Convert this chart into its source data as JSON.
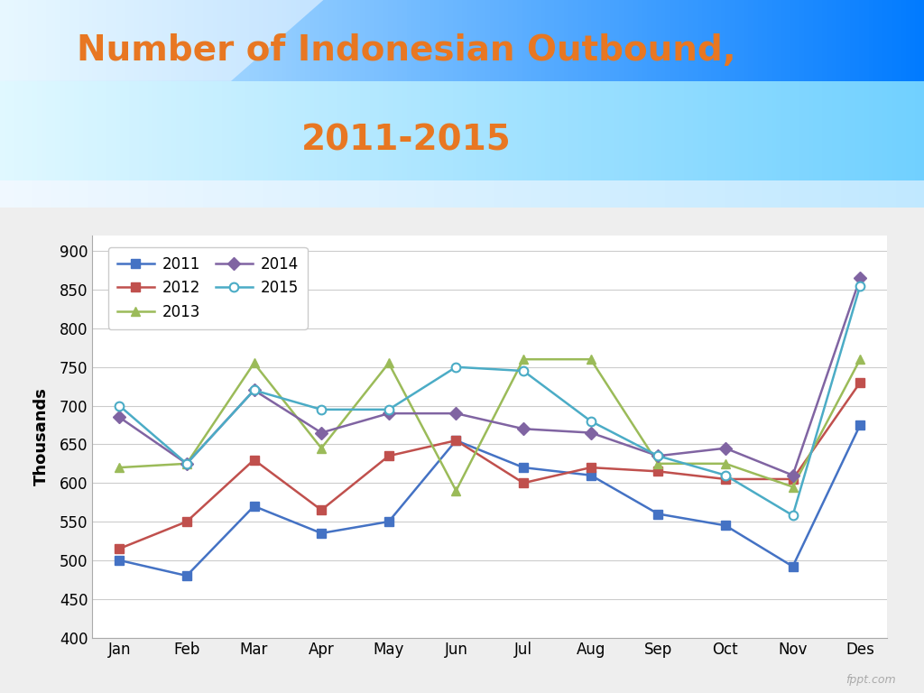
{
  "title_line1": "Number of Indonesian Outbound,",
  "title_line2": "2011-2015",
  "title_color": "#E87722",
  "ylabel": "Thousands",
  "months": [
    "Jan",
    "Feb",
    "Mar",
    "Apr",
    "May",
    "Jun",
    "Jul",
    "Aug",
    "Sep",
    "Oct",
    "Nov",
    "Des"
  ],
  "series": {
    "2011": [
      500,
      480,
      570,
      535,
      550,
      655,
      620,
      610,
      560,
      545,
      492,
      675
    ],
    "2012": [
      515,
      550,
      630,
      565,
      635,
      655,
      600,
      620,
      615,
      605,
      605,
      730
    ],
    "2013": [
      620,
      625,
      755,
      645,
      755,
      590,
      760,
      760,
      625,
      625,
      595,
      760
    ],
    "2014": [
      685,
      625,
      720,
      665,
      690,
      690,
      670,
      665,
      635,
      645,
      610,
      865
    ],
    "2015": [
      700,
      625,
      720,
      695,
      695,
      750,
      745,
      680,
      635,
      610,
      558,
      855
    ]
  },
  "colors": {
    "2011": "#4472C4",
    "2012": "#C0504D",
    "2013": "#9BBB59",
    "2014": "#8064A2",
    "2015": "#4BACC6"
  },
  "markers": {
    "2011": "s",
    "2012": "s",
    "2013": "^",
    "2014": "D",
    "2015": "o"
  },
  "ylim": [
    400,
    920
  ],
  "yticks": [
    400,
    450,
    500,
    550,
    600,
    650,
    700,
    750,
    800,
    850,
    900
  ],
  "figsize": [
    10.24,
    7.68
  ],
  "dpi": 100
}
